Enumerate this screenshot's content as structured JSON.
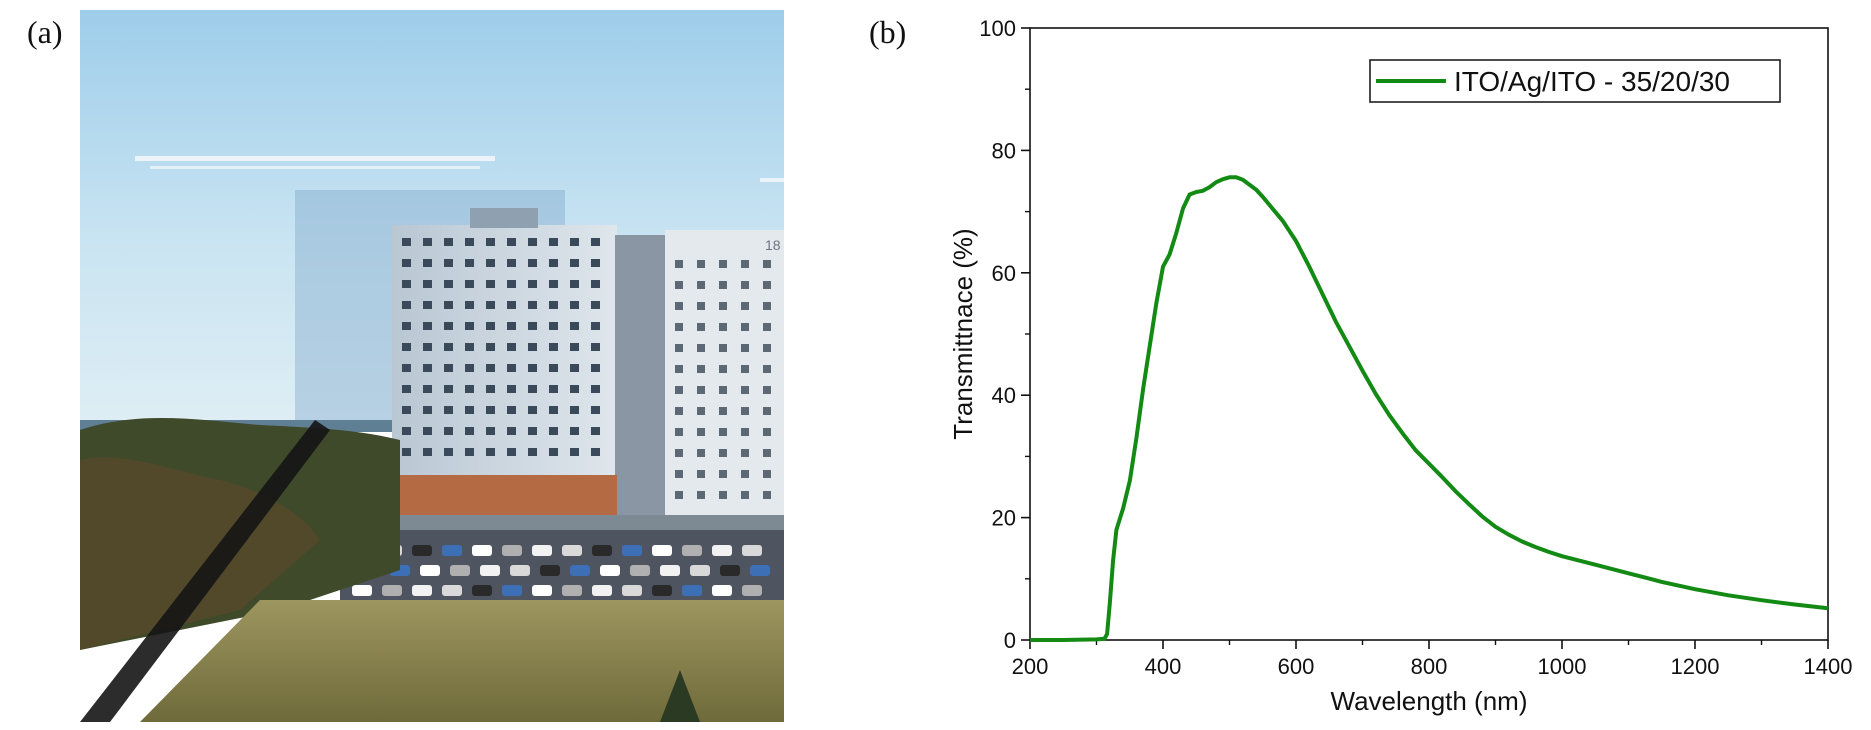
{
  "panels": {
    "a_label": "(a)",
    "b_label": "(b)"
  },
  "photo": {
    "sign_text": "18"
  },
  "colors": {
    "series_line": "#138a13",
    "axis": "#111111"
  },
  "chart_data": {
    "type": "line",
    "xlabel": "Wavelength (nm)",
    "ylabel": "Transmittnace (%)",
    "xlim": [
      200,
      1400
    ],
    "ylim": [
      0,
      100
    ],
    "xticks": [
      200,
      400,
      600,
      800,
      1000,
      1200,
      1400
    ],
    "yticks": [
      0,
      20,
      40,
      60,
      80,
      100
    ],
    "legend_placement": "top-right",
    "grid": false,
    "series": [
      {
        "name": "ITO/Ag/ITO - 35/20/30",
        "color": "#138a13",
        "x": [
          200,
          250,
          300,
          312,
          316,
          320,
          325,
          330,
          340,
          350,
          360,
          370,
          380,
          390,
          400,
          410,
          420,
          430,
          440,
          450,
          460,
          470,
          480,
          490,
          500,
          510,
          520,
          530,
          540,
          550,
          560,
          580,
          600,
          620,
          640,
          660,
          680,
          700,
          720,
          740,
          760,
          780,
          800,
          820,
          840,
          860,
          880,
          900,
          920,
          940,
          960,
          980,
          1000,
          1050,
          1100,
          1150,
          1200,
          1250,
          1300,
          1350,
          1400
        ],
        "y": [
          0.0,
          0.0,
          0.1,
          0.2,
          1.0,
          6.0,
          13.0,
          18.0,
          21.5,
          26.0,
          33.0,
          41.0,
          48.0,
          55.0,
          61.0,
          63.0,
          66.5,
          70.5,
          72.8,
          73.2,
          73.4,
          74.0,
          74.8,
          75.3,
          75.6,
          75.6,
          75.2,
          74.4,
          73.6,
          72.4,
          71.1,
          68.5,
          65.2,
          61.0,
          56.5,
          52.0,
          48.0,
          44.0,
          40.2,
          36.8,
          33.8,
          31.0,
          28.8,
          26.6,
          24.3,
          22.2,
          20.2,
          18.5,
          17.2,
          16.1,
          15.2,
          14.4,
          13.7,
          12.3,
          10.9,
          9.5,
          8.3,
          7.3,
          6.5,
          5.8,
          5.2
        ]
      }
    ]
  }
}
